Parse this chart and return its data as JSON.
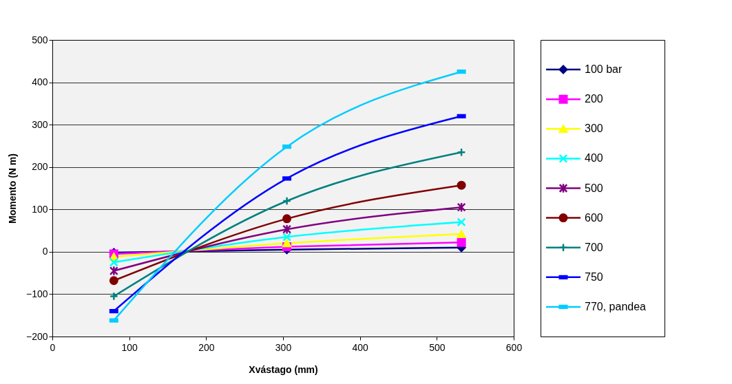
{
  "chart_data": {
    "type": "line",
    "xlabel": "Xvástago (mm)",
    "ylabel": "Momento (N m)",
    "x": [
      80,
      305,
      532
    ],
    "xlim": [
      0,
      600
    ],
    "xticks": [
      0,
      100,
      200,
      300,
      400,
      500,
      600
    ],
    "ylim": [
      -200,
      500
    ],
    "yticks": [
      -200,
      -100,
      0,
      100,
      200,
      300,
      400,
      500
    ],
    "grid": "y",
    "legend": "right",
    "series": [
      {
        "name": "100 bar",
        "color": "#000080",
        "marker": "diamond",
        "values": [
          -2,
          5,
          10
        ]
      },
      {
        "name": "200",
        "color": "#ff00ff",
        "marker": "square",
        "values": [
          -5,
          12,
          22
        ]
      },
      {
        "name": "300",
        "color": "#ffff00",
        "marker": "triangle",
        "values": [
          -12,
          20,
          42
        ]
      },
      {
        "name": "400",
        "color": "#00ffff",
        "marker": "cross",
        "values": [
          -25,
          35,
          70
        ]
      },
      {
        "name": "500",
        "color": "#800080",
        "marker": "cross",
        "values": [
          -45,
          53,
          105
        ]
      },
      {
        "name": "600",
        "color": "#800000",
        "marker": "circle",
        "values": [
          -68,
          78,
          157
        ]
      },
      {
        "name": "700",
        "color": "#008080",
        "marker": "cross",
        "values": [
          -105,
          120,
          235
        ]
      },
      {
        "name": "750",
        "color": "#0000ff",
        "marker": "square",
        "values": [
          -140,
          173,
          320
        ]
      },
      {
        "name": "770, pandea",
        "color": "#00ccff",
        "marker": "square",
        "values": [
          -162,
          248,
          425
        ]
      }
    ]
  }
}
